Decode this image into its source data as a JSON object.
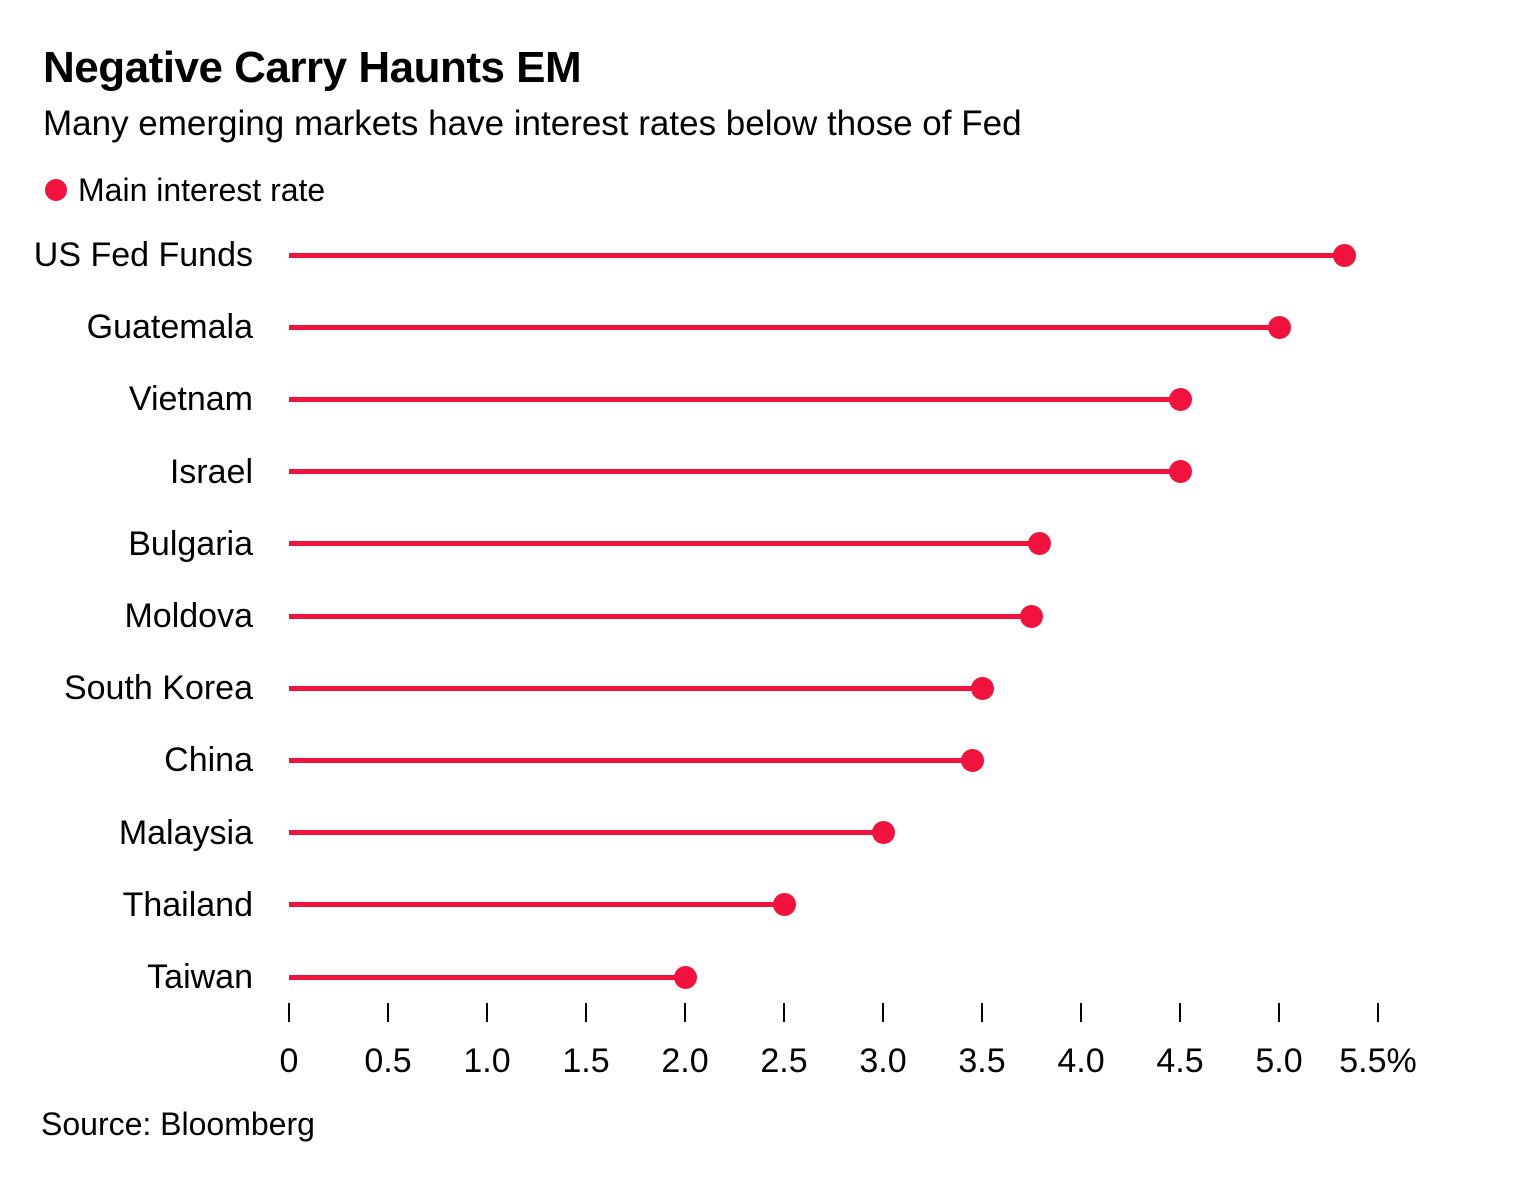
{
  "header": {
    "title": "Negative Carry Haunts EM",
    "subtitle": "Many emerging markets have interest rates below those of Fed"
  },
  "legend": {
    "marker": "red-dot",
    "label": "Main interest rate"
  },
  "footer": {
    "source": "Source: Bloomberg"
  },
  "colors": {
    "accent": "#F1133E",
    "text": "#000000",
    "background": "#FFFFFF"
  },
  "chart_data": {
    "type": "bar",
    "style": "lollipop-horizontal",
    "title": "Negative Carry Haunts EM",
    "subtitle": "Many emerging markets have interest rates below those of Fed",
    "legend_entries": [
      "Main interest rate"
    ],
    "legend_position": "top-left",
    "categories": [
      "US Fed Funds",
      "Guatemala",
      "Vietnam",
      "Israel",
      "Bulgaria",
      "Moldova",
      "South Korea",
      "China",
      "Malaysia",
      "Thailand",
      "Taiwan"
    ],
    "values": [
      5.33,
      5.0,
      4.5,
      4.5,
      3.79,
      3.75,
      3.5,
      3.45,
      3.0,
      2.5,
      2.0
    ],
    "unit": "%",
    "xlabel": "",
    "ylabel": "",
    "xlim": [
      0,
      5.5
    ],
    "xticks": [
      0,
      0.5,
      1.0,
      1.5,
      2.0,
      2.5,
      3.0,
      3.5,
      4.0,
      4.5,
      5.0,
      5.5
    ],
    "xtick_labels": [
      "0",
      "0.5",
      "1.0",
      "1.5",
      "2.0",
      "2.5",
      "3.0",
      "3.5",
      "4.0",
      "4.5",
      "5.0",
      "5.5%"
    ],
    "grid": false,
    "source": "Source: Bloomberg"
  }
}
